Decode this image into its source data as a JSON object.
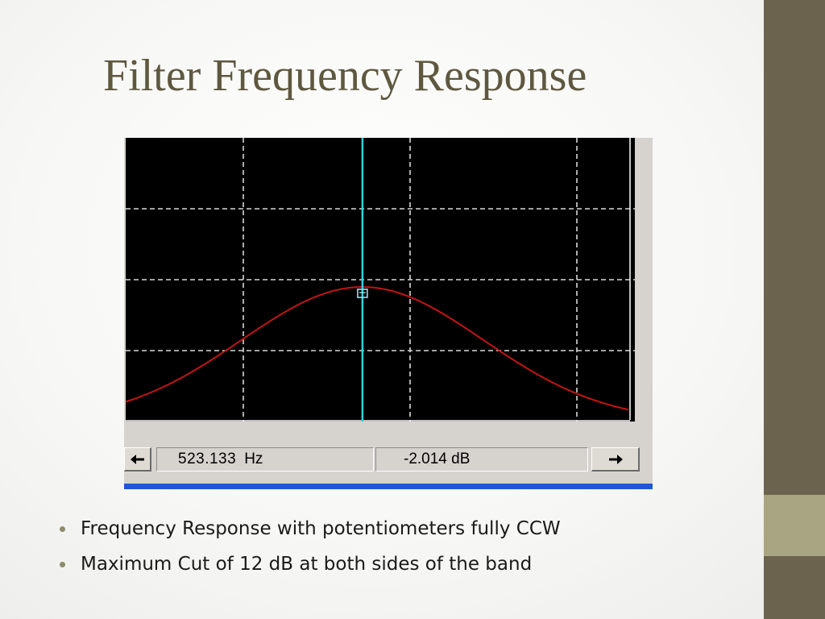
{
  "slide": {
    "title": "Filter Frequency Response",
    "theme": {
      "background": "#ffffff",
      "title_color": "#5e583f",
      "side_bar": "#6b634d",
      "side_accent": "#a9a582",
      "bullet_color": "#8e8a6c"
    }
  },
  "analyzer": {
    "display": {
      "background": "#000000",
      "grid_color": "#d8d8d8",
      "grid_style": "dashed",
      "grid_columns": 4,
      "grid_rows": 4,
      "trace_color": "#c41414",
      "cursor_color": "#2fd0e0",
      "cursor_position": 0.465,
      "response_shape": "bell"
    },
    "status": {
      "frequency_value": "523.133",
      "frequency_unit": "Hz",
      "level_readout": "-2.014 dB",
      "left_arrow_icon": "arrow-left-icon",
      "right_arrow_icon": "arrow-right-icon"
    },
    "frame_accent": "#1f58d6"
  },
  "bullets": [
    "Frequency Response with potentiometers fully CCW",
    "Maximum Cut of 12 dB at both sides of the band"
  ]
}
